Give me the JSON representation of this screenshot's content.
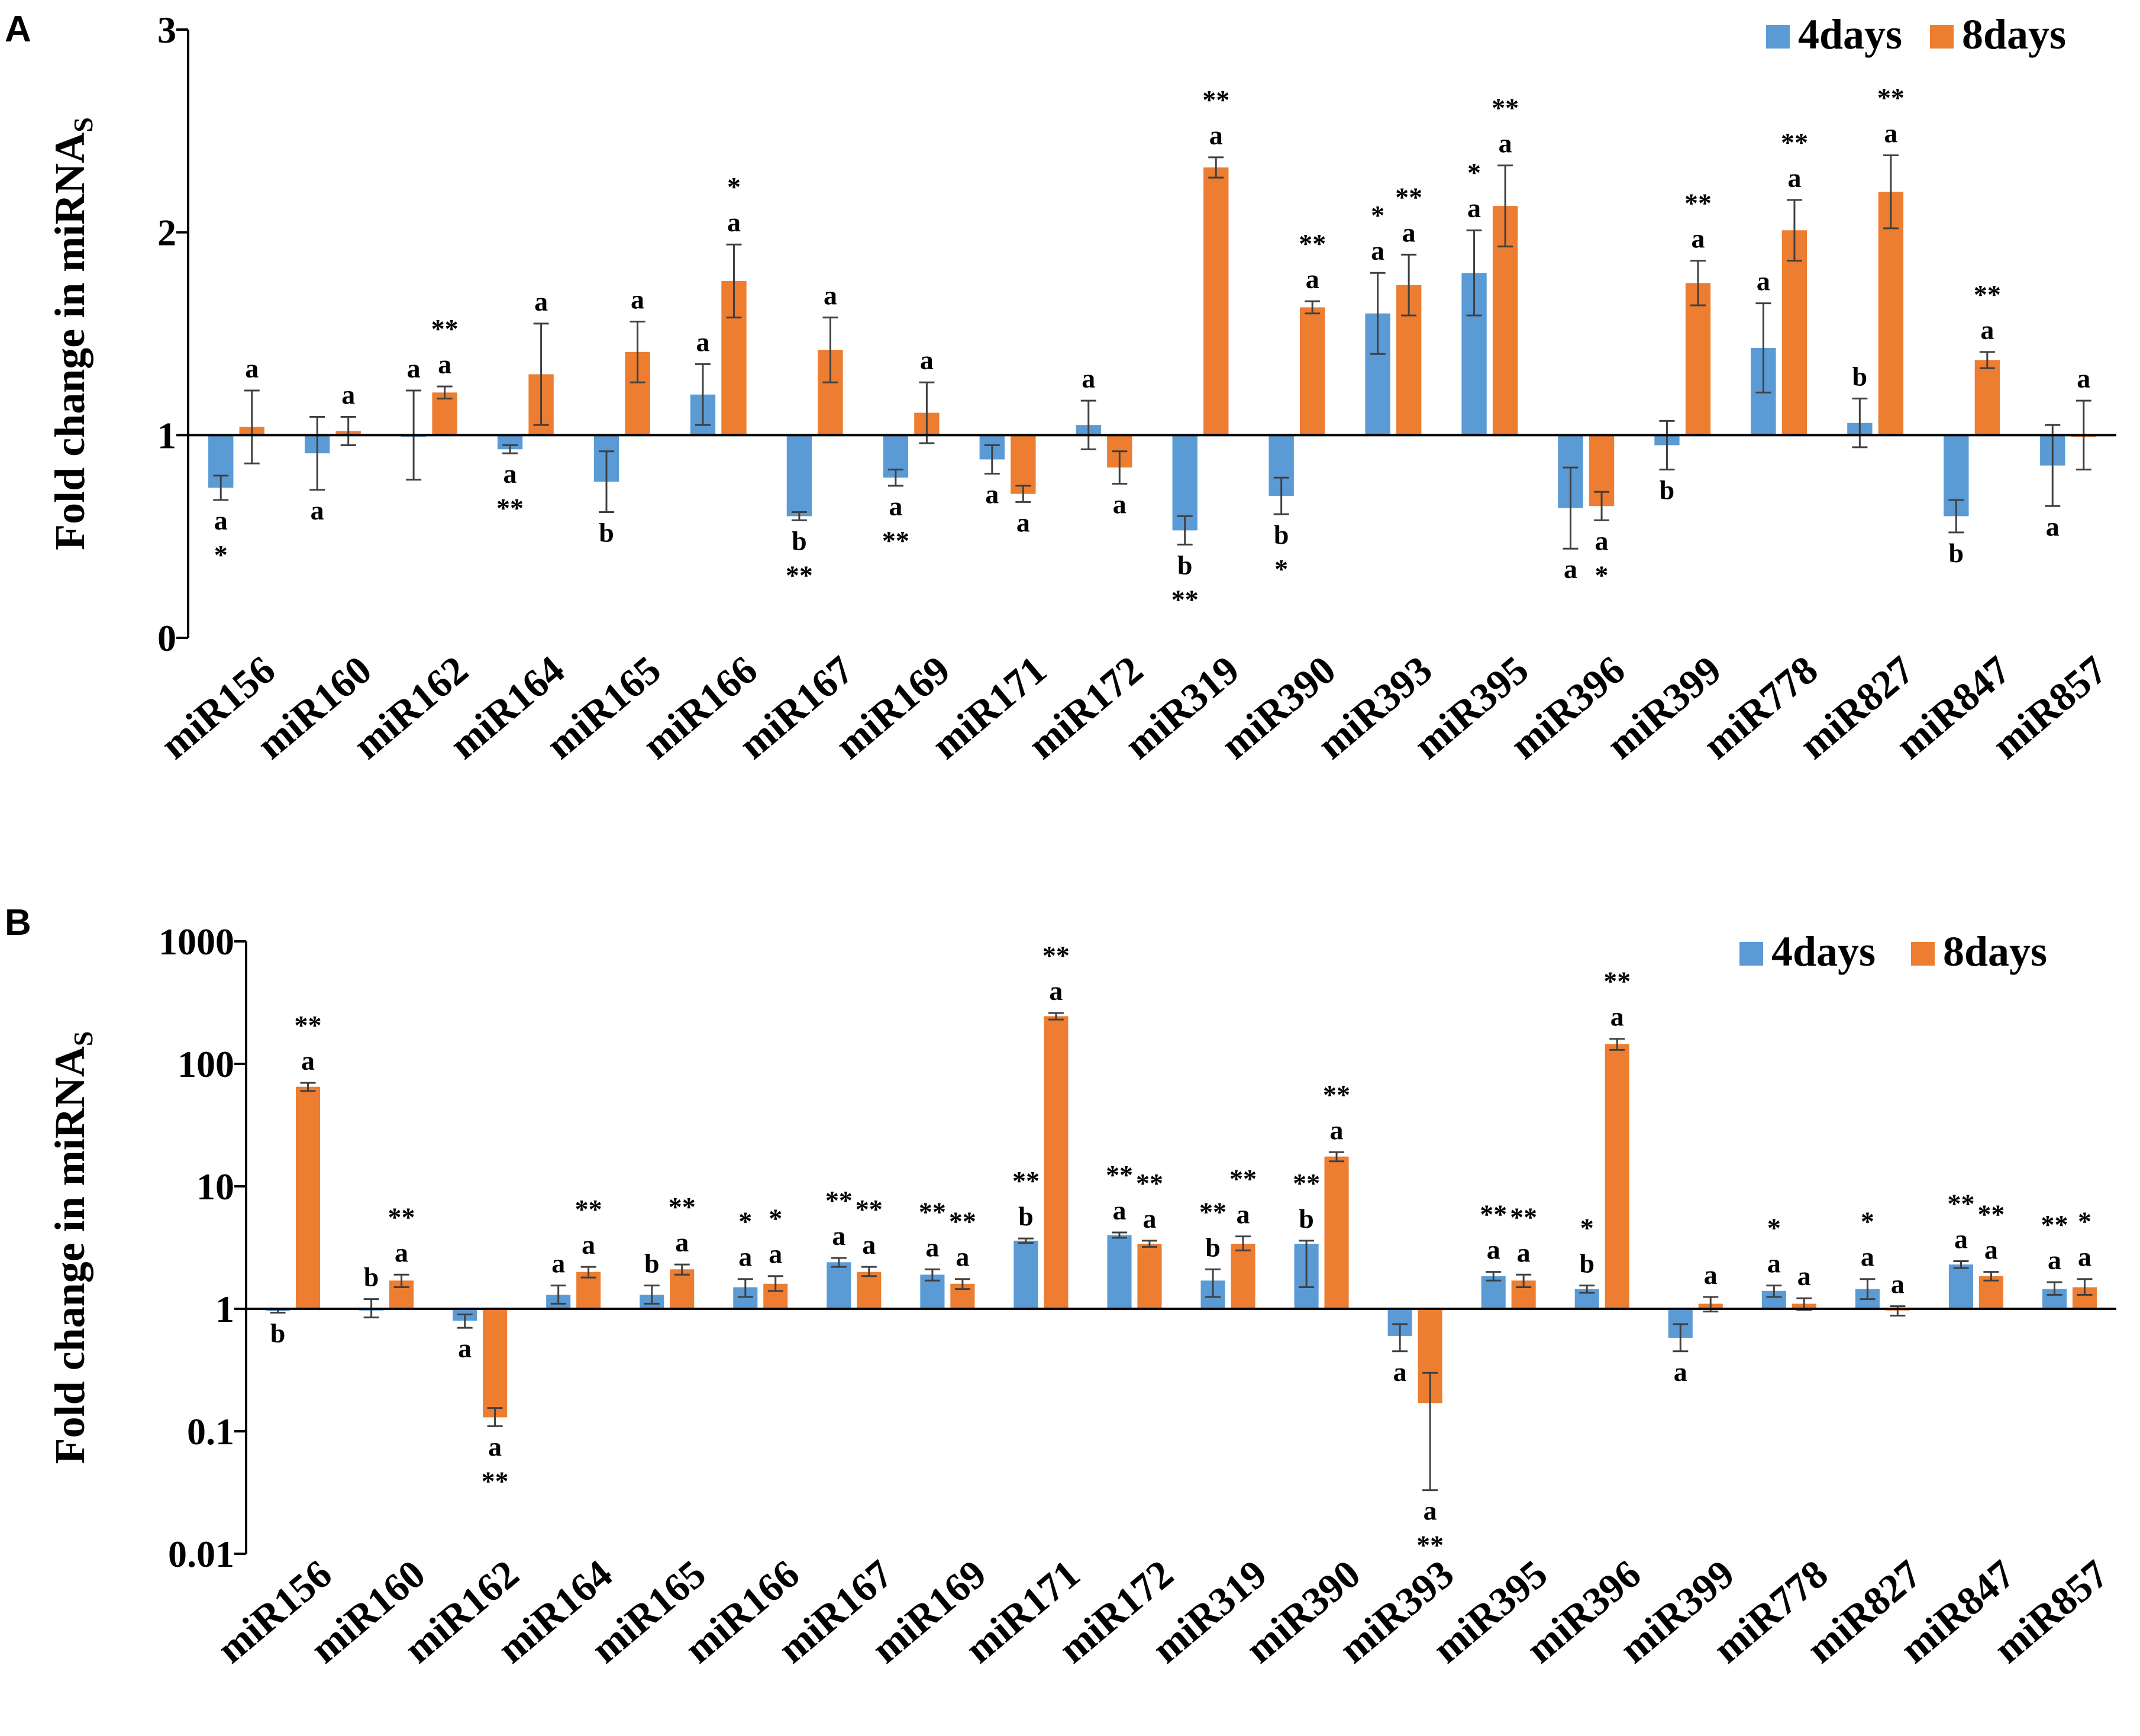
{
  "colors": {
    "days4": "#5b9bd5",
    "days8": "#ed7d31",
    "axis": "#000000",
    "error": "#404040"
  },
  "chart_data": [
    {
      "panel": "A",
      "type": "bar",
      "scale": "linear",
      "ylabel_main": "Fold change in miRNA",
      "ylabel_sub": "S",
      "ylim": [
        0,
        3
      ],
      "yticks": [
        "0",
        "1",
        "2",
        "3"
      ],
      "baseline": 1,
      "legend": [
        "4days",
        "8days"
      ],
      "legend_position": "top-right",
      "categories": [
        "miR156",
        "miR160",
        "miR162",
        "miR164",
        "miR165",
        "miR166",
        "miR167",
        "miR169",
        "miR171",
        "miR172",
        "miR319",
        "miR390",
        "miR393",
        "miR395",
        "miR396",
        "miR399",
        "miR778",
        "miR827",
        "miR847",
        "miR857"
      ],
      "series": [
        {
          "name": "4days",
          "values": [
            0.74,
            0.91,
            1.0,
            0.93,
            0.77,
            1.2,
            0.6,
            0.79,
            0.88,
            1.05,
            0.53,
            0.7,
            1.6,
            1.8,
            0.64,
            0.95,
            1.43,
            1.06,
            0.6,
            0.85
          ],
          "errors": [
            0.06,
            0.18,
            0.22,
            0.02,
            0.15,
            0.15,
            0.02,
            0.04,
            0.07,
            0.12,
            0.07,
            0.09,
            0.2,
            0.21,
            0.2,
            0.12,
            0.22,
            0.12,
            0.08,
            0.2
          ],
          "letters": [
            "a",
            "a",
            "a",
            "a",
            "b",
            "a",
            "b",
            "a",
            "a",
            "a",
            "b",
            "b",
            "a",
            "a",
            "a",
            "b",
            "a",
            "b",
            "b",
            "a"
          ],
          "stars": [
            "*",
            "",
            "",
            "**",
            "",
            "",
            "**",
            "**",
            "",
            "",
            "**",
            "*",
            "*",
            "*",
            "",
            "",
            "",
            "",
            "",
            ""
          ]
        },
        {
          "name": "8days",
          "values": [
            1.04,
            1.02,
            1.21,
            1.3,
            1.41,
            1.76,
            1.42,
            1.11,
            0.71,
            0.84,
            2.32,
            1.63,
            1.74,
            2.13,
            0.65,
            1.75,
            2.01,
            2.2,
            1.37,
            1.0
          ],
          "errors": [
            0.18,
            0.07,
            0.03,
            0.25,
            0.15,
            0.18,
            0.16,
            0.15,
            0.04,
            0.08,
            0.05,
            0.03,
            0.15,
            0.2,
            0.07,
            0.11,
            0.15,
            0.18,
            0.04,
            0.17
          ],
          "letters": [
            "a",
            "a",
            "a",
            "a",
            "a",
            "a",
            "a",
            "a",
            "a",
            "a",
            "a",
            "a",
            "a",
            "a",
            "a",
            "a",
            "a",
            "a",
            "a",
            "a"
          ],
          "stars": [
            "",
            "",
            "**",
            "",
            "",
            "*",
            "",
            "",
            "",
            "",
            "**",
            "**",
            "**",
            "**",
            "*",
            "**",
            "**",
            "**",
            "**",
            ""
          ]
        }
      ]
    },
    {
      "panel": "B",
      "type": "bar",
      "scale": "log",
      "ylabel_main": "Fold change in miRNA",
      "ylabel_sub": "S",
      "ylim": [
        0.01,
        1000
      ],
      "yticks": [
        "0.01",
        "0.1",
        "1",
        "10",
        "100",
        "1000"
      ],
      "baseline": 1,
      "legend": [
        "4days",
        "8days"
      ],
      "legend_position": "top-right",
      "categories": [
        "miR156",
        "miR160",
        "miR162",
        "miR164",
        "miR165",
        "miR166",
        "miR167",
        "miR169",
        "miR171",
        "miR172",
        "miR319",
        "miR390",
        "miR393",
        "miR395",
        "miR396",
        "miR399",
        "miR778",
        "miR827",
        "miR847",
        "miR857"
      ],
      "series": [
        {
          "name": "4days",
          "values": [
            0.96,
            1.0,
            0.8,
            1.3,
            1.3,
            1.5,
            2.4,
            1.9,
            3.6,
            4.0,
            1.7,
            3.4,
            0.6,
            1.85,
            1.45,
            0.58,
            1.4,
            1.45,
            2.3,
            1.45
          ],
          "errors_low": [
            0.93,
            0.85,
            0.7,
            1.1,
            1.1,
            1.25,
            2.2,
            1.7,
            3.45,
            3.8,
            1.25,
            1.5,
            0.45,
            1.7,
            1.35,
            0.45,
            1.25,
            1.2,
            2.15,
            1.3
          ],
          "errors_high": [
            0.99,
            1.2,
            0.9,
            1.55,
            1.55,
            1.75,
            2.6,
            2.1,
            3.75,
            4.2,
            2.1,
            3.6,
            0.75,
            2.0,
            1.55,
            0.75,
            1.55,
            1.75,
            2.45,
            1.65
          ],
          "letters": [
            "b",
            "b",
            "a",
            "a",
            "b",
            "a",
            "a",
            "a",
            "b",
            "a",
            "b",
            "b",
            "a",
            "a",
            "b",
            "a",
            "a",
            "a",
            "a",
            "a"
          ],
          "stars": [
            "",
            "",
            "",
            "",
            "",
            "*",
            "**",
            "**",
            "**",
            "**",
            "**",
            "**",
            "",
            "**",
            "*",
            "",
            "*",
            "*",
            "**",
            "**"
          ]
        },
        {
          "name": "8days",
          "values": [
            65,
            1.7,
            0.13,
            2.0,
            2.1,
            1.6,
            2.0,
            1.6,
            245,
            3.4,
            3.4,
            17.5,
            0.17,
            1.7,
            145,
            1.1,
            1.1,
            1.0,
            1.85,
            1.5
          ],
          "errors_low": [
            60,
            1.5,
            0.11,
            1.8,
            1.9,
            1.4,
            1.85,
            1.45,
            230,
            3.2,
            3.0,
            16,
            0.033,
            1.5,
            130,
            0.95,
            0.98,
            0.88,
            1.7,
            1.3
          ],
          "errors_high": [
            70,
            1.9,
            0.155,
            2.2,
            2.3,
            1.85,
            2.2,
            1.75,
            260,
            3.6,
            3.9,
            19,
            0.3,
            1.9,
            160,
            1.25,
            1.22,
            1.05,
            2.0,
            1.75
          ],
          "letters": [
            "a",
            "a",
            "a",
            "a",
            "a",
            "a",
            "a",
            "a",
            "a",
            "a",
            "a",
            "a",
            "a",
            "a",
            "a",
            "a",
            "a",
            "a",
            "a",
            "a"
          ],
          "stars": [
            "**",
            "**",
            "**",
            "**",
            "**",
            "*",
            "**",
            "**",
            "**",
            "**",
            "**",
            "**",
            "**",
            "**",
            "**",
            "",
            "",
            "",
            "**",
            "*"
          ]
        }
      ]
    }
  ]
}
